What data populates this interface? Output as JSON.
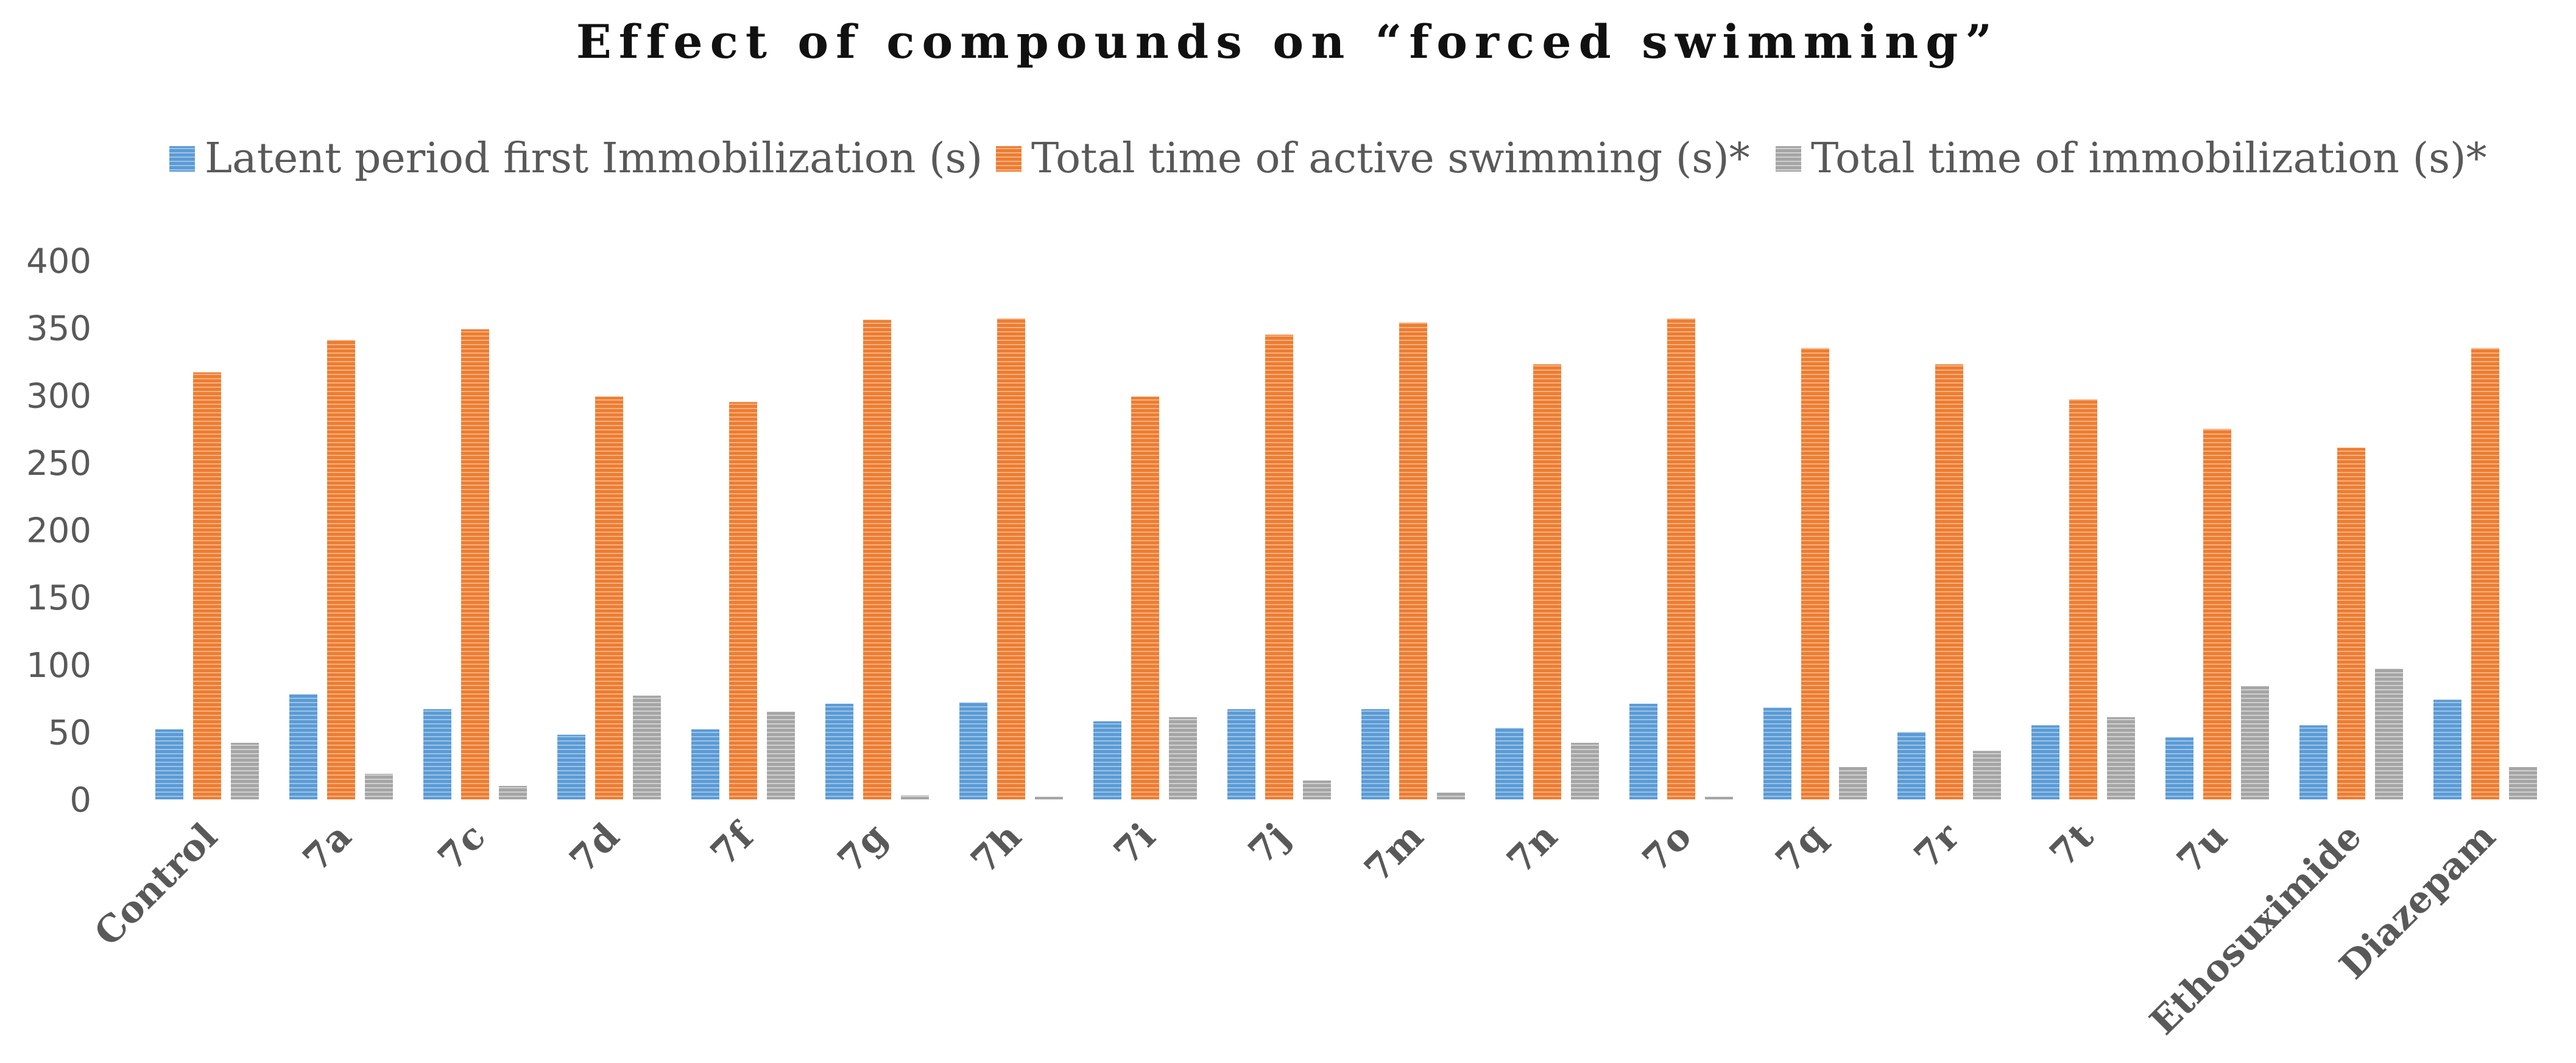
{
  "chart_data": {
    "type": "bar",
    "title": "Effect of compounds on “forced swimming”",
    "xlabel": "",
    "ylabel": "",
    "ylim": [
      0,
      400
    ],
    "yticks": [
      0,
      50,
      100,
      150,
      200,
      250,
      300,
      350,
      400
    ],
    "ytick_labels": [
      "0",
      "50",
      "100",
      "150",
      "200",
      "250",
      "300",
      "350",
      "400"
    ],
    "grid": false,
    "legend_position": "top",
    "categories": [
      "Control",
      "7a",
      "7c",
      "7d",
      "7f",
      "7g",
      "7h",
      "7i",
      "7j",
      "7m",
      "7n",
      "7o",
      "7q",
      "7r",
      "7t",
      "7u",
      "Ethosuximide",
      "Diazepam"
    ],
    "series": [
      {
        "name": "Latent period first Immobilization (s)",
        "color": "#5b9bd5",
        "values": [
          52,
          78,
          67,
          48,
          52,
          71,
          72,
          58,
          67,
          67,
          53,
          71,
          68,
          50,
          55,
          46,
          55,
          74
        ]
      },
      {
        "name": "Total time of active swimming (s)*",
        "color": "#ed7d31",
        "values": [
          317,
          341,
          349,
          299,
          295,
          356,
          357,
          299,
          345,
          354,
          323,
          357,
          335,
          323,
          297,
          275,
          261,
          335
        ]
      },
      {
        "name": "Total time of immobilization (s)*",
        "color": "#a5a5a5",
        "values": [
          42,
          19,
          10,
          77,
          65,
          3,
          2,
          61,
          14,
          5,
          42,
          2,
          24,
          36,
          61,
          84,
          97,
          24
        ]
      }
    ]
  }
}
